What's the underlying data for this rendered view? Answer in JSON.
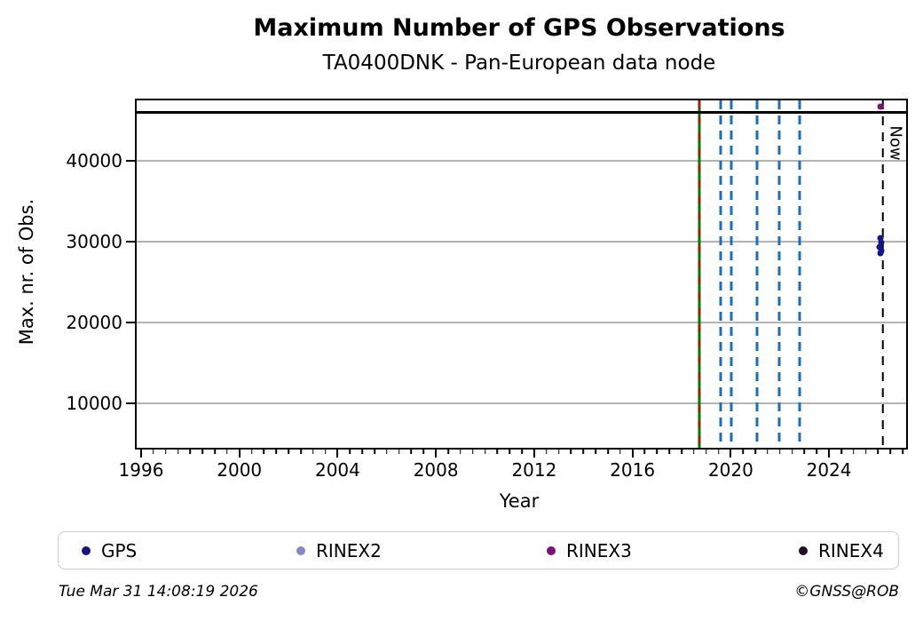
{
  "title": "Maximum Number of GPS Observations",
  "subtitle": "TA0400DNK - Pan-European data node",
  "footer": {
    "timestamp": "Tue Mar 31 14:08:19 2026",
    "credit": "©GNSS@ROB"
  },
  "legend": {
    "items": [
      {
        "label": "GPS",
        "color": "#14148c"
      },
      {
        "label": "RINEX2",
        "color": "#8787c3"
      },
      {
        "label": "RINEX3",
        "color": "#7e107e"
      },
      {
        "label": "RINEX4",
        "color": "#250e25"
      }
    ]
  },
  "chart_data": {
    "type": "scatter",
    "title": "Maximum Number of GPS Observations",
    "subtitle": "TA0400DNK - Pan-European data node",
    "xlabel": "Year",
    "ylabel": "Max. nr. of Obs.",
    "xlim": [
      1995.82,
      2027.14
    ],
    "ylim": [
      4500,
      47500
    ],
    "x_major_ticks": [
      1996,
      2000,
      2004,
      2008,
      2012,
      2016,
      2020,
      2024
    ],
    "x_minor_step": 0.5,
    "y_ticks": [
      10000,
      20000,
      30000,
      40000
    ],
    "grid": "horizontal-only",
    "legend_position": "bottom",
    "hlines": [
      {
        "y": 46000,
        "color": "#000000",
        "style": "solid",
        "width": 2.5,
        "name": "max-observations-line"
      }
    ],
    "vlines": [
      {
        "x": 2018.72,
        "color": "#007a00",
        "style": "solid",
        "width": 3,
        "name": "event-line-green"
      },
      {
        "x": 2018.72,
        "color": "#d40000",
        "style": "dashed",
        "width": 2.5,
        "dash": [
          9,
          9
        ],
        "name": "event-line-red-dashed"
      },
      {
        "x": 2019.59,
        "color": "#1b6fc1",
        "style": "dashed",
        "width": 3,
        "dash": [
          10,
          7
        ],
        "name": "event-line-blue-1"
      },
      {
        "x": 2020.02,
        "color": "#1b6fc1",
        "style": "dashed",
        "width": 3,
        "dash": [
          10,
          7
        ],
        "name": "event-line-blue-2"
      },
      {
        "x": 2021.07,
        "color": "#1b6fc1",
        "style": "dashed",
        "width": 3,
        "dash": [
          10,
          7
        ],
        "name": "event-line-blue-3"
      },
      {
        "x": 2021.97,
        "color": "#1b6fc1",
        "style": "dashed",
        "width": 3,
        "dash": [
          10,
          7
        ],
        "name": "event-line-blue-4"
      },
      {
        "x": 2022.8,
        "color": "#1b6fc1",
        "style": "dashed",
        "width": 3,
        "dash": [
          10,
          7
        ],
        "name": "event-line-blue-5"
      },
      {
        "x": 2026.2,
        "color": "#000000",
        "style": "dashed",
        "width": 2.5,
        "dash": [
          10,
          8
        ],
        "name": "now-line",
        "label": "Now"
      }
    ],
    "now_label": "Now",
    "series": [
      {
        "name": "GPS",
        "color": "#14148c",
        "marker_px": 7,
        "points": [
          [
            2026.09,
            30450
          ],
          [
            2026.13,
            29900
          ],
          [
            2026.06,
            29350
          ],
          [
            2026.13,
            28910
          ],
          [
            2026.09,
            28580
          ]
        ]
      },
      {
        "name": "RINEX2",
        "color": "#8787c3",
        "marker_px": 7,
        "points": []
      },
      {
        "name": "RINEX3",
        "color": "#7e107e",
        "marker_px": 7,
        "points": [
          [
            2026.09,
            46730
          ]
        ]
      },
      {
        "name": "RINEX4",
        "color": "#250e25",
        "marker_px": 7,
        "points": []
      }
    ]
  }
}
